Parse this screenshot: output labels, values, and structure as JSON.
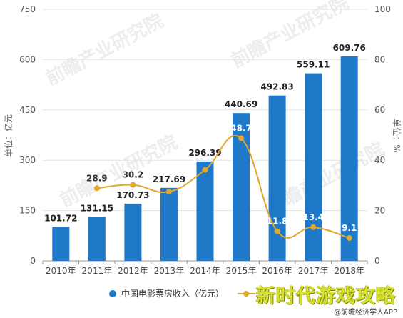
{
  "chart_data": {
    "type": "bar",
    "categories": [
      "2010年",
      "2011年",
      "2012年",
      "2013年",
      "2014年",
      "2015年",
      "2016年",
      "2017年",
      "2018年"
    ],
    "series": [
      {
        "name": "中国电影票房收入（亿元）",
        "type": "bar",
        "axis": "left",
        "color": "#1f78c8",
        "values": [
          101.72,
          131.15,
          170.73,
          217.69,
          296.39,
          440.69,
          492.83,
          559.11,
          609.76
        ],
        "labels": [
          "101.72",
          "131.15",
          "170.73",
          "217.69",
          "296.39",
          "440.69",
          "492.83",
          "559.11",
          "609.76"
        ]
      },
      {
        "name": "",
        "type": "line",
        "axis": "right",
        "color": "#e0a82e",
        "values": [
          null,
          28.9,
          30.2,
          27.5,
          36.2,
          48.7,
          11.8,
          13.4,
          9.1
        ],
        "labels": [
          "",
          "28.9",
          "30.2",
          "",
          "",
          "48.7",
          "11.8",
          "13.4",
          "9.1"
        ]
      }
    ],
    "ylabel": "单位：亿元",
    "y2label": "单位：%",
    "ylim": [
      0,
      750
    ],
    "y2lim": [
      0,
      100
    ],
    "yticks": [
      "0",
      "150",
      "300",
      "450",
      "600",
      "750"
    ],
    "y2ticks": [
      "0",
      "20",
      "40",
      "60",
      "80",
      "100"
    ],
    "legend_position": "bottom"
  },
  "overlay": {
    "caption": "新时代游戏攻略",
    "source": "@前瞻经济学人APP"
  },
  "watermark": "前瞻产业研究院"
}
